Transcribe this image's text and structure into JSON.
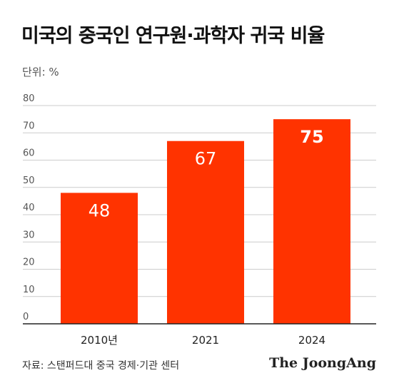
{
  "header": {
    "title": "미국의 중국인 연구원·과학자 귀국 비율",
    "unit": "단위: %"
  },
  "footer": {
    "source": "자료: 스탠퍼드대 중국 경제·기관 센터",
    "logo": "The JoongAng"
  },
  "colors": {
    "bar": "#ff3300",
    "grid": "#cccccc",
    "axis": "#222222",
    "tick_text": "#555555",
    "bar_label": "#ffffff"
  },
  "chart_data": {
    "type": "bar",
    "title": "미국의 중국인 연구원·과학자 귀국 비율",
    "xlabel": "",
    "ylabel": "",
    "categories": [
      "2010년",
      "2021",
      "2024"
    ],
    "values": [
      48,
      67,
      75
    ],
    "data_labels": [
      "48",
      "67",
      "75"
    ],
    "ylim": [
      0,
      80
    ],
    "yticks": [
      0,
      10,
      20,
      30,
      40,
      50,
      60,
      70,
      80
    ],
    "grid": true,
    "legend": "none"
  }
}
